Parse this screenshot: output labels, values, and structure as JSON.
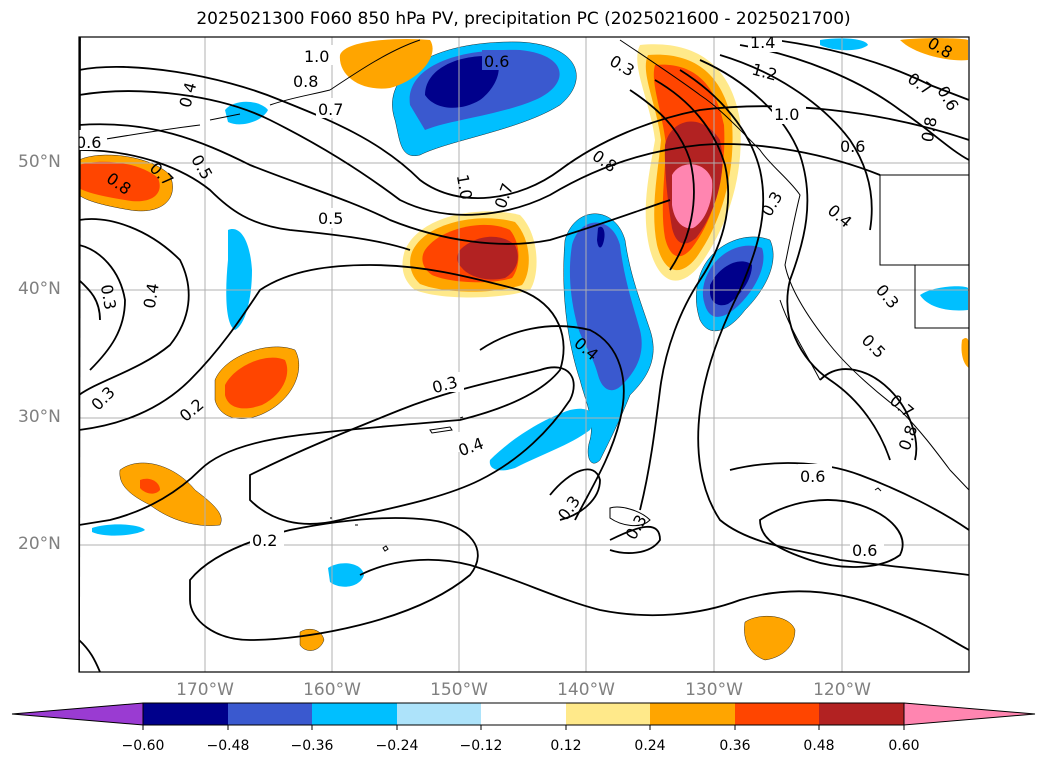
{
  "title": "2025021300 F060 850 hPa PV, precipitation PC (2025021600 - 2025021700)",
  "lat_labels": [
    "50°N",
    "40°N",
    "30°N",
    "20°N"
  ],
  "lon_labels": [
    "170°W",
    "160°W",
    "150°W",
    "140°W",
    "130°W",
    "120°W"
  ],
  "colorbar": {
    "tick_labels": [
      "−0.60",
      "−0.48",
      "−0.36",
      "−0.24",
      "−0.12",
      "0.12",
      "0.24",
      "0.36",
      "0.48",
      "0.60"
    ],
    "colors": [
      "#9a3bd2",
      "#00008b",
      "#3a59cf",
      "#00bfff",
      "#ade3fa",
      "#ffffff",
      "#ffe98a",
      "#ffa500",
      "#ff4500",
      "#b22222",
      "#ff85b0"
    ]
  },
  "contour_labels": [
    "1.0",
    "0.8",
    "0.7",
    "0.6",
    "0.5",
    "0.4",
    "0.3",
    "0.2",
    "1.4",
    "1.2"
  ]
}
